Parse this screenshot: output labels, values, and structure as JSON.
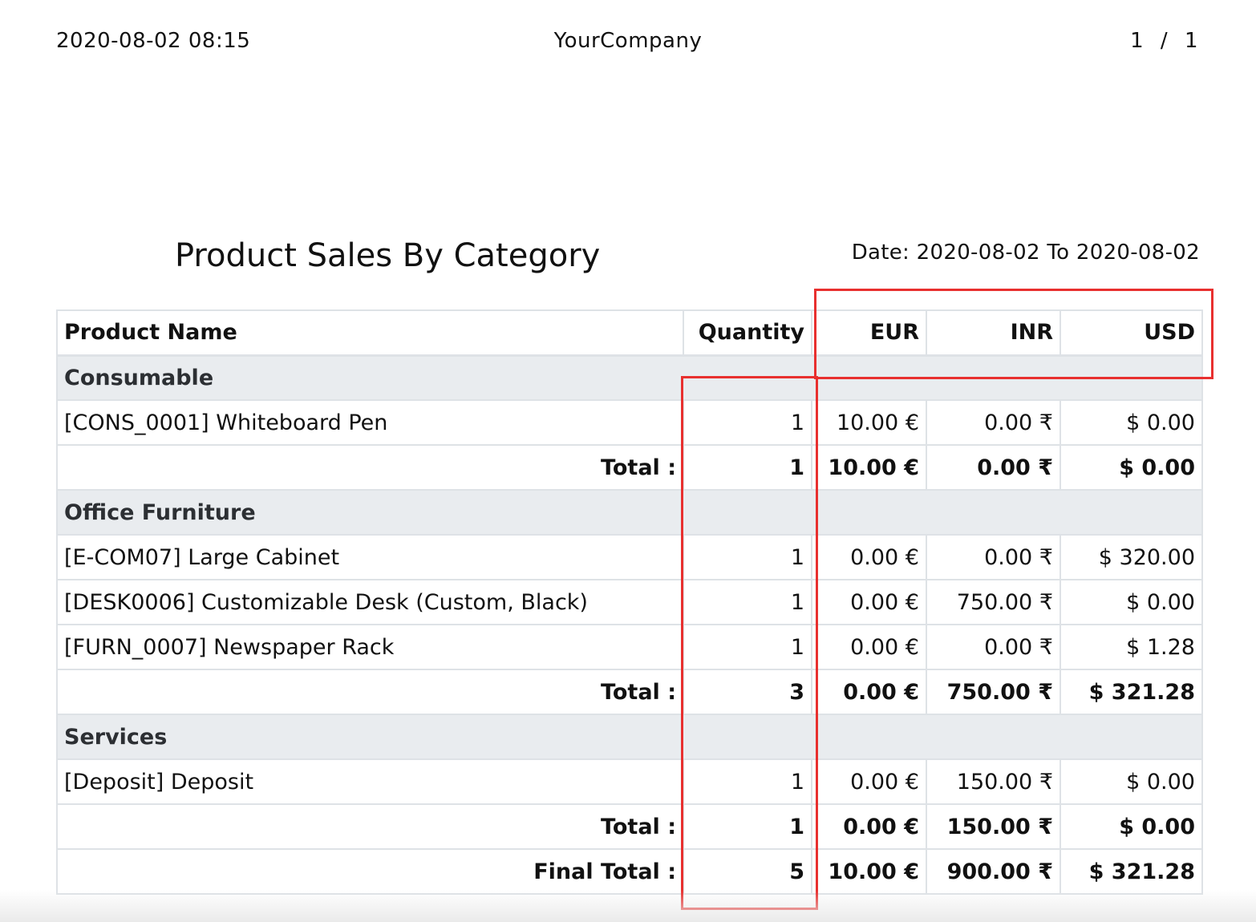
{
  "header": {
    "timestamp": "2020-08-02 08:15",
    "company": "YourCompany",
    "page_indicator": "1 / 1"
  },
  "report": {
    "title": "Product Sales By Category",
    "date_range": "Date: 2020-08-02 To 2020-08-02"
  },
  "table": {
    "columns": [
      "Product Name",
      "Quantity",
      "EUR",
      "INR",
      "USD"
    ],
    "categories": [
      {
        "name": "Consumable",
        "rows": [
          {
            "product": "[CONS_0001] Whiteboard Pen",
            "qty": "1",
            "eur": "10.00 €",
            "inr": "0.00 ₹",
            "usd": "$ 0.00"
          }
        ],
        "total": {
          "label": "Total :",
          "qty": "1",
          "eur": "10.00 €",
          "inr": "0.00 ₹",
          "usd": "$ 0.00"
        }
      },
      {
        "name": "Office Furniture",
        "rows": [
          {
            "product": "[E-COM07] Large Cabinet",
            "qty": "1",
            "eur": "0.00 €",
            "inr": "0.00 ₹",
            "usd": "$ 320.00"
          },
          {
            "product": "[DESK0006] Customizable Desk (Custom, Black)",
            "qty": "1",
            "eur": "0.00 €",
            "inr": "750.00 ₹",
            "usd": "$ 0.00"
          },
          {
            "product": "[FURN_0007] Newspaper Rack",
            "qty": "1",
            "eur": "0.00 €",
            "inr": "0.00 ₹",
            "usd": "$ 1.28"
          }
        ],
        "total": {
          "label": "Total :",
          "qty": "3",
          "eur": "0.00 €",
          "inr": "750.00 ₹",
          "usd": "$ 321.28"
        }
      },
      {
        "name": "Services",
        "rows": [
          {
            "product": "[Deposit] Deposit",
            "qty": "1",
            "eur": "0.00 €",
            "inr": "150.00 ₹",
            "usd": "$ 0.00"
          }
        ],
        "total": {
          "label": "Total :",
          "qty": "1",
          "eur": "0.00 €",
          "inr": "150.00 ₹",
          "usd": "$ 0.00"
        }
      }
    ],
    "final_total": {
      "label": "Final Total :",
      "qty": "5",
      "eur": "10.00 €",
      "inr": "900.00 ₹",
      "usd": "$ 321.28"
    }
  },
  "colors": {
    "highlight": "#e8302f",
    "category_bg": "#e9ecef",
    "border": "#dee2e6"
  }
}
